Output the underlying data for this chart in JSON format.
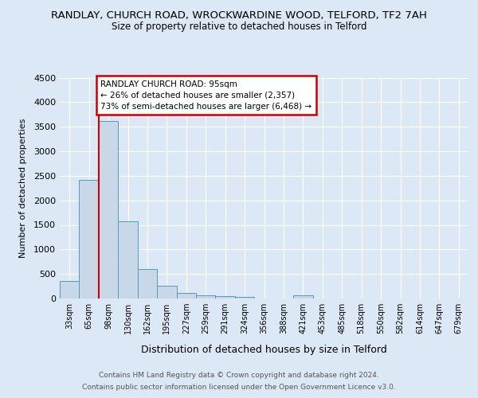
{
  "title": "RANDLAY, CHURCH ROAD, WROCKWARDINE WOOD, TELFORD, TF2 7AH",
  "subtitle": "Size of property relative to detached houses in Telford",
  "xlabel": "Distribution of detached houses by size in Telford",
  "ylabel": "Number of detached properties",
  "categories": [
    "33sqm",
    "65sqm",
    "98sqm",
    "130sqm",
    "162sqm",
    "195sqm",
    "227sqm",
    "259sqm",
    "291sqm",
    "324sqm",
    "356sqm",
    "388sqm",
    "421sqm",
    "453sqm",
    "485sqm",
    "518sqm",
    "550sqm",
    "582sqm",
    "614sqm",
    "647sqm",
    "679sqm"
  ],
  "values": [
    350,
    2420,
    3620,
    1580,
    600,
    255,
    120,
    65,
    50,
    35,
    0,
    0,
    60,
    0,
    0,
    0,
    0,
    0,
    0,
    0,
    0
  ],
  "bar_color": "#c8d8e8",
  "bar_edge_color": "#5599bb",
  "annotation_text": "RANDLAY CHURCH ROAD: 95sqm\n← 26% of detached houses are smaller (2,357)\n73% of semi-detached houses are larger (6,468) →",
  "annotation_box_color": "#ffffff",
  "annotation_box_edge": "#cc0000",
  "vline_color": "#cc0000",
  "ylim": [
    0,
    4500
  ],
  "yticks": [
    0,
    500,
    1000,
    1500,
    2000,
    2500,
    3000,
    3500,
    4000,
    4500
  ],
  "footer_line1": "Contains HM Land Registry data © Crown copyright and database right 2024.",
  "footer_line2": "Contains public sector information licensed under the Open Government Licence v3.0.",
  "background_color": "#dce8f5",
  "plot_bg_color": "#dce8f5",
  "title_fontsize": 9.5,
  "subtitle_fontsize": 8.5
}
